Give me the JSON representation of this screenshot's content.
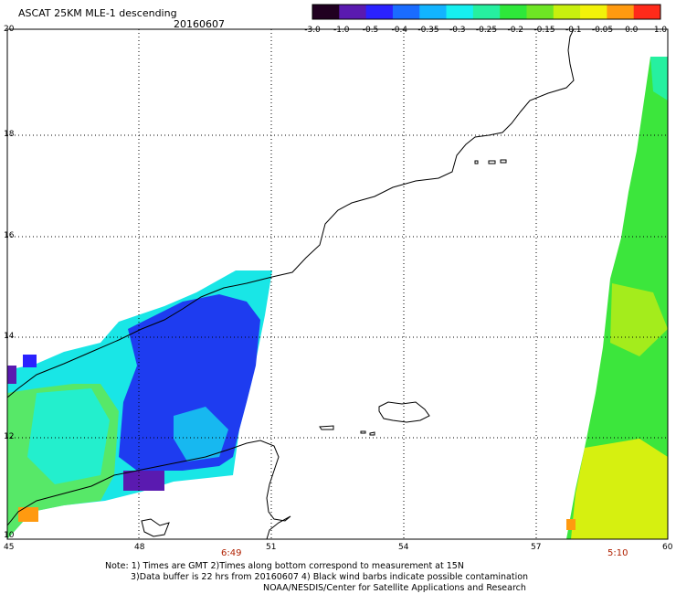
{
  "title": "ASCAT 25KM MLE-1 descending",
  "date": "20160607",
  "colorbar": {
    "labels": [
      "-3.0",
      "-1.0",
      "-0.5",
      "-0.4",
      "-0.35",
      "-0.3",
      "-0.25",
      "-0.2",
      "-0.15",
      "-0.1",
      "-0.05",
      "0.0",
      "1.0"
    ],
    "colors": [
      "#200020",
      "#5a1ab0",
      "#2a22ff",
      "#1a6cff",
      "#12b4ff",
      "#16f0f0",
      "#26f0a0",
      "#2ee83a",
      "#6ee624",
      "#c8f00e",
      "#f2f20a",
      "#ff9a10",
      "#ff2a1a"
    ]
  },
  "axes": {
    "lat_labels": [
      "20",
      "18",
      "16",
      "14",
      "12",
      "10"
    ],
    "lon_labels": [
      "45",
      "48",
      "51",
      "54",
      "57",
      "60"
    ],
    "lat_range": [
      10,
      20
    ],
    "lon_range": [
      45,
      60
    ]
  },
  "time_labels": [
    "6:49",
    "5:10"
  ],
  "notes": [
    "Note: 1) Times are GMT 2)Times along bottom correspond to measurement at 15N",
    "3)Data buffer is 22 hrs from 20160607 4) Black wind barbs indicate possible contamination",
    "NOAA/NESDIS/Center for Satellite Applications and Research"
  ]
}
